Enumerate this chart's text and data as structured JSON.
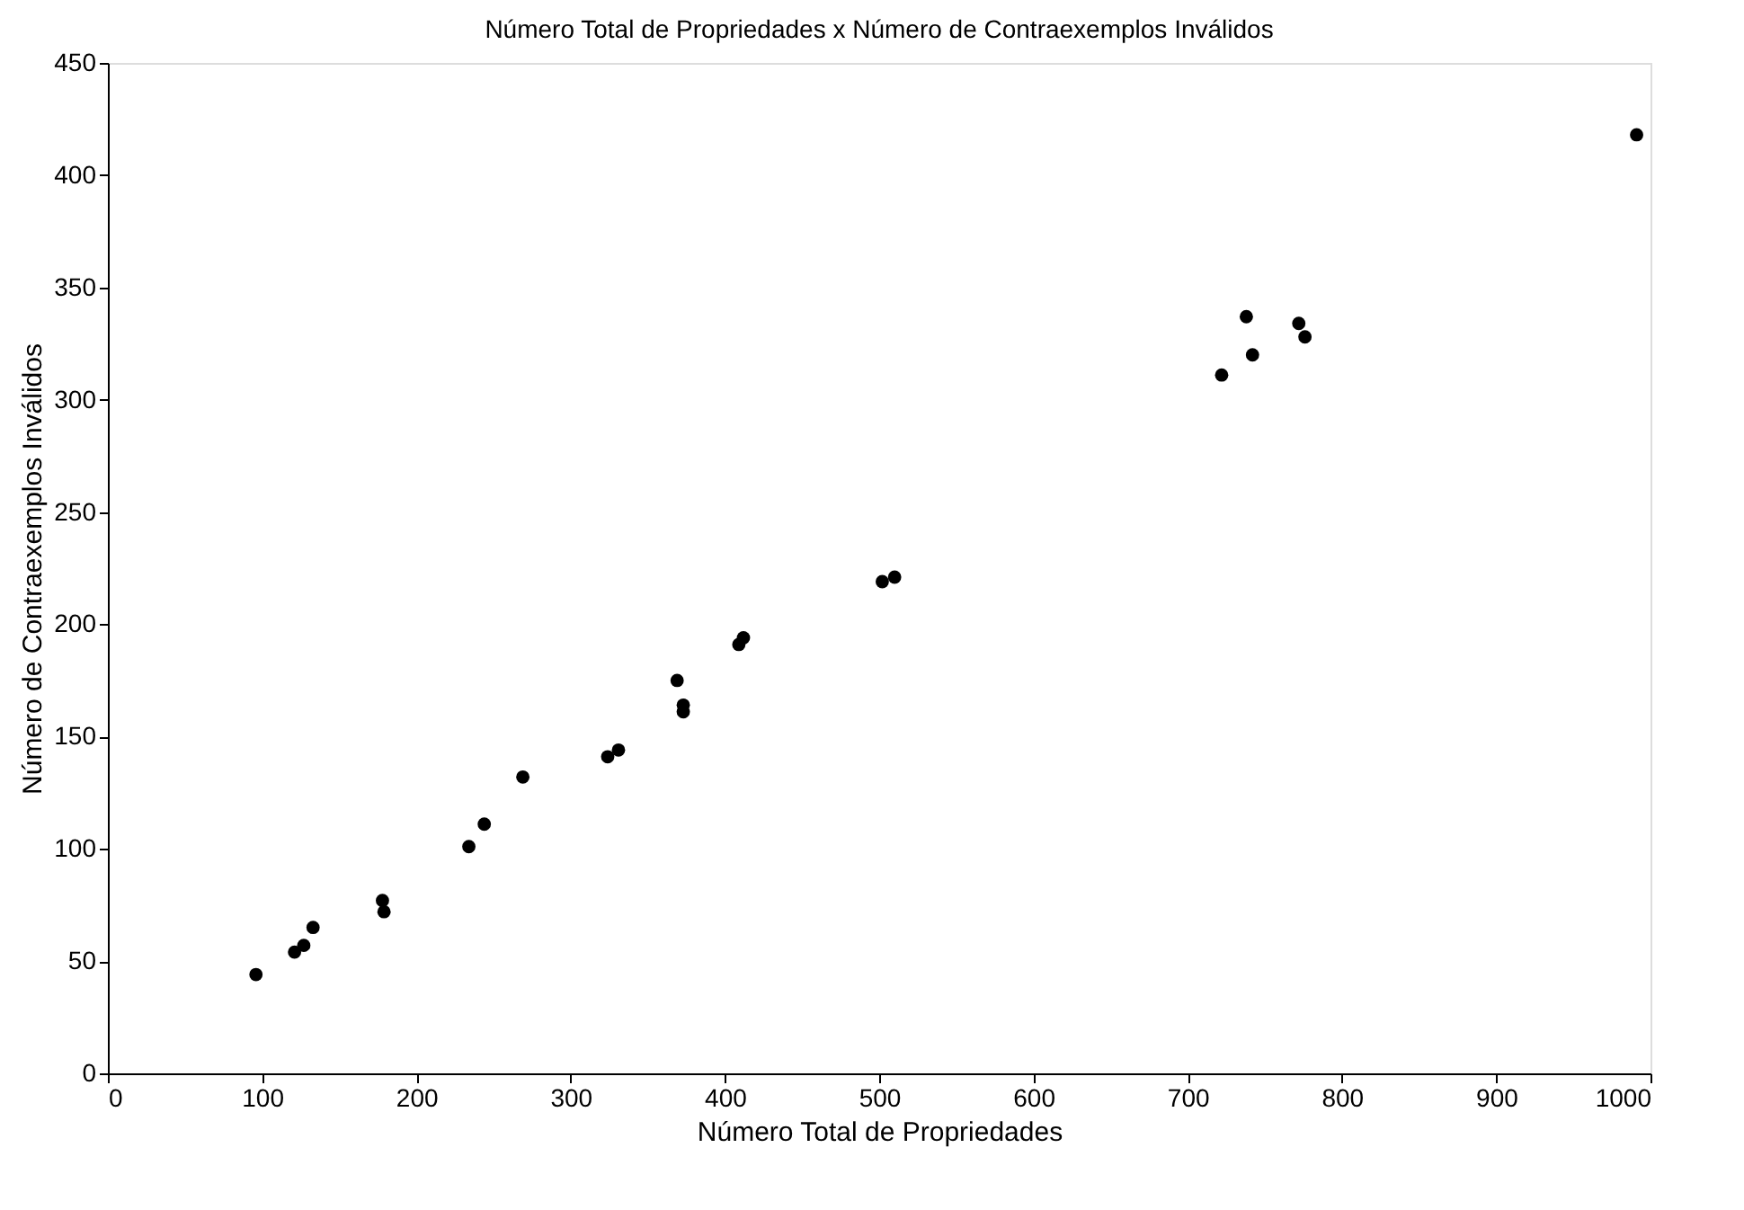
{
  "chart_data": {
    "type": "scatter",
    "title": "Número Total de Propriedades x Número de Contraexemplos Inválidos",
    "xlabel": "Número Total de Propriedades",
    "ylabel": "Número de Contraexemplos Inválidos",
    "x": [
      96,
      121,
      127,
      133,
      178,
      179,
      234,
      244,
      269,
      324,
      331,
      369,
      373,
      373,
      409,
      412,
      502,
      510,
      722,
      738,
      742,
      772,
      776,
      991
    ],
    "series": [
      {
        "color": "#000000",
        "values": [
          44,
          54,
          57,
          65,
          77,
          72,
          101,
          111,
          132,
          141,
          144,
          175,
          164,
          161,
          191,
          194,
          219,
          221,
          311,
          337,
          320,
          334,
          328,
          418
        ]
      }
    ],
    "xlim": [
      0,
      1000
    ],
    "xticks": [
      0,
      100,
      200,
      300,
      400,
      500,
      600,
      700,
      800,
      900,
      1000
    ],
    "ylim": [
      0,
      450
    ],
    "yticks": [
      0,
      50,
      100,
      150,
      200,
      250,
      300,
      350,
      400,
      450
    ],
    "grid": false,
    "legend": false,
    "marker": "circle"
  }
}
